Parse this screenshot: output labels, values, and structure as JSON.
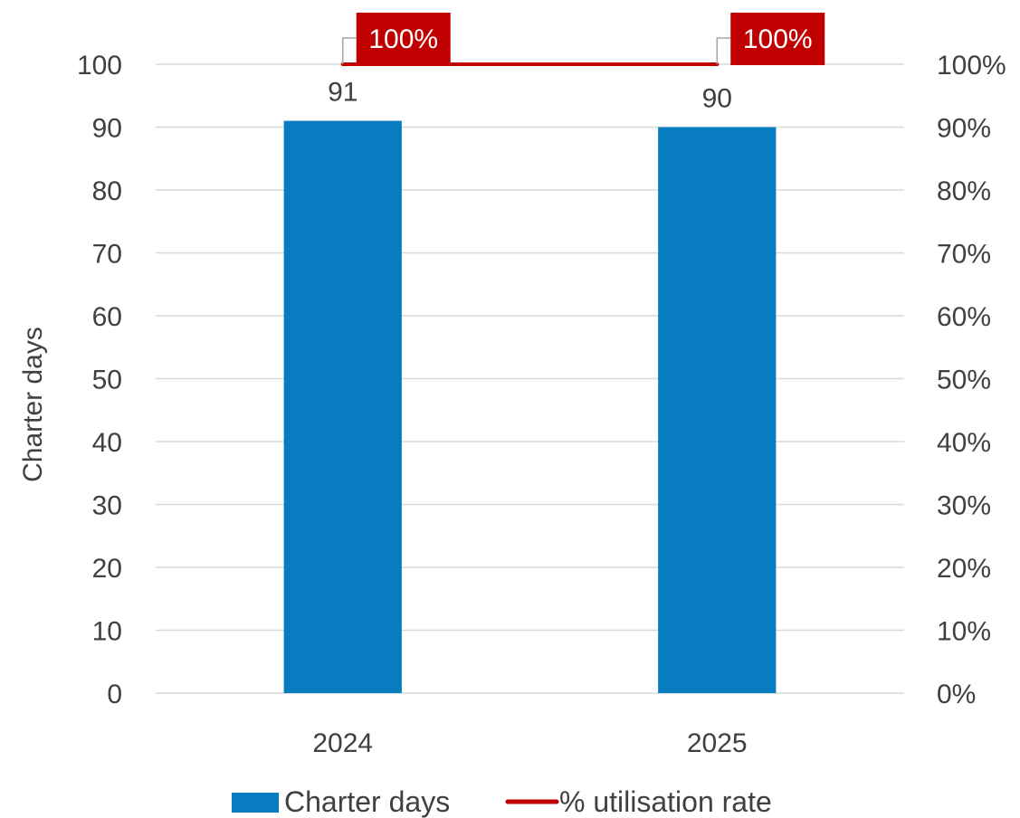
{
  "chart_data": {
    "type": "bar",
    "categories": [
      "2024",
      "2025"
    ],
    "series": [
      {
        "name": "Charter days",
        "type": "bar",
        "axis": "left",
        "color": "#077CC1",
        "values": [
          91,
          90
        ],
        "value_labels": [
          "91",
          "90"
        ]
      },
      {
        "name": "% utilisation rate",
        "type": "line",
        "axis": "right",
        "color": "#C00000",
        "values": [
          100,
          100
        ],
        "value_labels": [
          "100%",
          "100%"
        ]
      }
    ],
    "ylabel": "Charter days",
    "ylim": [
      0,
      100
    ],
    "yticks": [
      "0",
      "10",
      "20",
      "30",
      "40",
      "50",
      "60",
      "70",
      "80",
      "90",
      "100"
    ],
    "y2lim": [
      0,
      100
    ],
    "y2ticks": [
      "0%",
      "10%",
      "20%",
      "30%",
      "40%",
      "50%",
      "60%",
      "70%",
      "80%",
      "90%",
      "100%"
    ],
    "grid": true,
    "legend": "bottom"
  }
}
